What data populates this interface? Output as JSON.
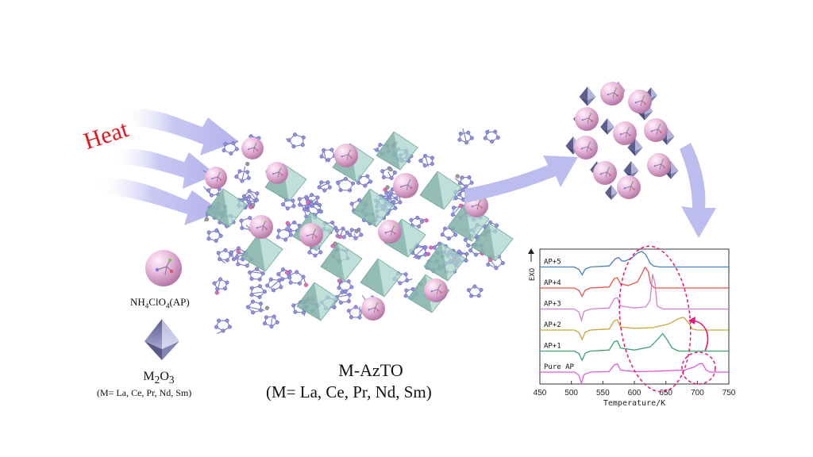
{
  "heat_label": "Heat",
  "legend": {
    "ap_formula_main": "NH",
    "ap_formula_sub1": "4",
    "ap_formula_mid": "ClO",
    "ap_formula_sub2": "4",
    "ap_formula_tail": "(AP)",
    "oxide_formula_a": "M",
    "oxide_formula_sub1": "2",
    "oxide_formula_b": "O",
    "oxide_formula_sub2": "3",
    "oxide_metals": "(M= La, Ce, Pr, Nd, Sm)"
  },
  "framework": {
    "name": "M-AzTO",
    "metals": "(M= La, Ce, Pr, Nd, Sm)"
  },
  "colors": {
    "arrow": "#b9b8ee",
    "sphere": "#e9b7dc",
    "octahedron": "#8c8cbe",
    "polyhedron": "#9fcfc6",
    "heat_text": "#e8161b",
    "highlight": "#e8157a"
  },
  "chart_data": {
    "type": "line",
    "xlabel": "Temperature/K",
    "ylabel": "EXO",
    "xlim": [
      450,
      750
    ],
    "xticks": [
      450,
      500,
      550,
      600,
      650,
      700,
      750
    ],
    "series": [
      {
        "name": "AP+5",
        "color": "#4a7fb5",
        "baseline": 5,
        "x": [
          450,
          505,
          512,
          517,
          522,
          530,
          560,
          570,
          575,
          580,
          585,
          595,
          605,
          612,
          618,
          625,
          630,
          640,
          660,
          700,
          750
        ],
        "y": [
          0,
          0,
          -0.12,
          -0.38,
          -0.1,
          0,
          0.05,
          0.4,
          0.46,
          0.3,
          0.28,
          0.42,
          0.68,
          0.75,
          0.6,
          0.2,
          0.05,
          0,
          0,
          0,
          0
        ]
      },
      {
        "name": "AP+4",
        "color": "#e8534a",
        "baseline": 4,
        "x": [
          450,
          505,
          512,
          517,
          522,
          530,
          560,
          568,
          573,
          578,
          590,
          605,
          612,
          617,
          622,
          626,
          632,
          650,
          700,
          750
        ],
        "y": [
          0,
          0,
          -0.12,
          -0.4,
          -0.1,
          0,
          0.05,
          0.45,
          0.5,
          0.2,
          0.12,
          0.3,
          0.7,
          1.0,
          0.8,
          0.2,
          0,
          0,
          0,
          0
        ]
      },
      {
        "name": "AP+3",
        "color": "#d580cf",
        "baseline": 3,
        "x": [
          450,
          505,
          512,
          516,
          520,
          530,
          560,
          568,
          573,
          578,
          600,
          618,
          625,
          629,
          633,
          636,
          645,
          700,
          750
        ],
        "y": [
          0,
          0,
          -0.15,
          -0.55,
          -0.12,
          0,
          0.05,
          0.5,
          0.55,
          0.15,
          0.05,
          0.1,
          0.4,
          1.7,
          1.2,
          0.15,
          0,
          0,
          0
        ]
      },
      {
        "name": "AP+2",
        "color": "#c9a43a",
        "baseline": 2,
        "x": [
          450,
          505,
          512,
          517,
          522,
          530,
          560,
          568,
          573,
          578,
          600,
          630,
          655,
          670,
          678,
          685,
          692,
          700,
          750
        ],
        "y": [
          0,
          0,
          -0.12,
          -0.45,
          -0.1,
          0,
          0.05,
          0.45,
          0.5,
          0.15,
          0.08,
          0.12,
          0.3,
          0.55,
          0.62,
          0.4,
          0.05,
          0,
          0
        ]
      },
      {
        "name": "AP+1",
        "color": "#3aa36e",
        "baseline": 1,
        "x": [
          450,
          505,
          512,
          517,
          522,
          530,
          560,
          568,
          573,
          578,
          600,
          625,
          638,
          645,
          652,
          660,
          670,
          700,
          750
        ],
        "y": [
          0,
          0,
          -0.12,
          -0.45,
          -0.1,
          0,
          0.05,
          0.45,
          0.5,
          0.15,
          0.05,
          0.2,
          0.6,
          0.85,
          0.55,
          0.15,
          0,
          0,
          0
        ]
      },
      {
        "name": "Pure AP",
        "color": "#e05ad8",
        "baseline": 0,
        "x": [
          450,
          505,
          512,
          516,
          520,
          530,
          560,
          568,
          573,
          578,
          600,
          640,
          680,
          695,
          703,
          708,
          714,
          720,
          750
        ],
        "y": [
          0,
          0,
          -0.15,
          -0.55,
          -0.12,
          0,
          0.03,
          0.35,
          0.4,
          0.1,
          0.02,
          0.05,
          0.1,
          0.25,
          0.4,
          0.42,
          0.1,
          0,
          0
        ]
      }
    ]
  }
}
